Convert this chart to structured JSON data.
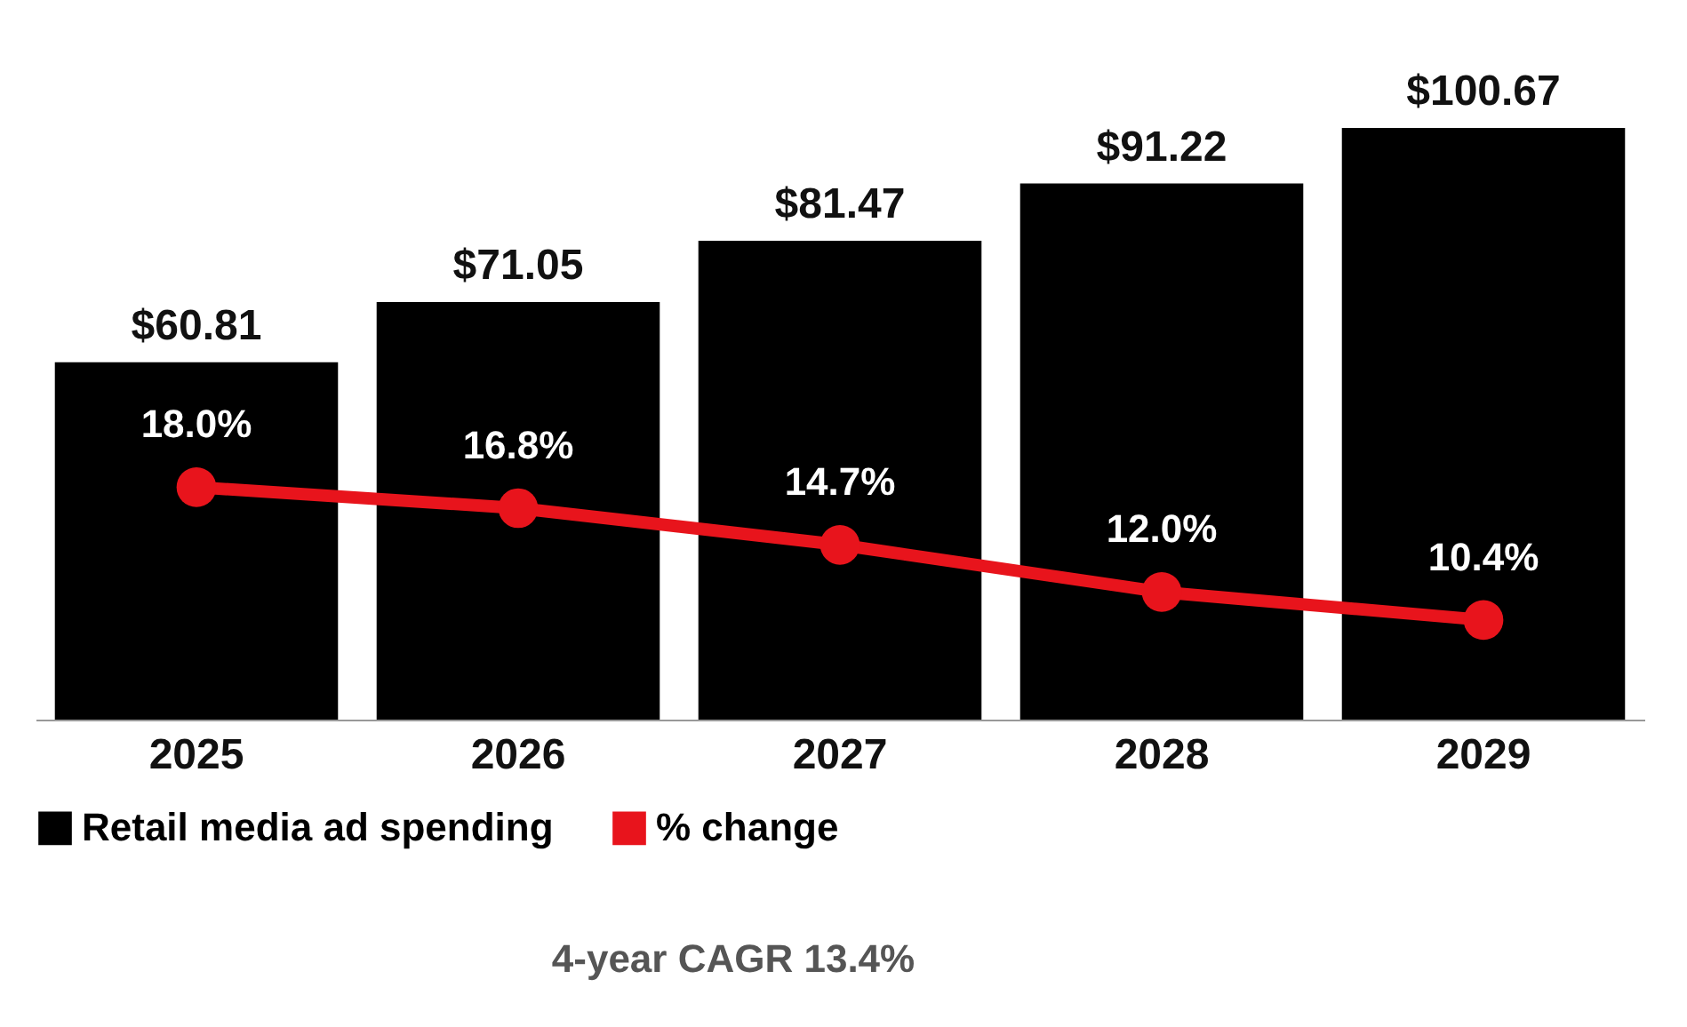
{
  "chart_data": {
    "type": "bar",
    "categories": [
      "2025",
      "2026",
      "2027",
      "2028",
      "2029"
    ],
    "series": [
      {
        "name": "Retail media ad spending",
        "color": "#000000",
        "values": [
          60.81,
          71.05,
          81.47,
          91.22,
          100.67
        ],
        "value_labels": [
          "$60.81",
          "$71.05",
          "$81.47",
          "$91.22",
          "$100.67"
        ]
      },
      {
        "name": "% change",
        "type": "line",
        "axis": "y2",
        "color": "#e8141c",
        "values": [
          18.0,
          16.8,
          14.7,
          12.0,
          10.4
        ],
        "value_labels": [
          "18.0%",
          "16.8%",
          "14.7%",
          "12.0%",
          "10.4%"
        ]
      }
    ],
    "tick_labels": "x",
    "legend": "bottom",
    "marker": "circle",
    "annotations": [
      "4-year CAGR 13.4%"
    ]
  }
}
